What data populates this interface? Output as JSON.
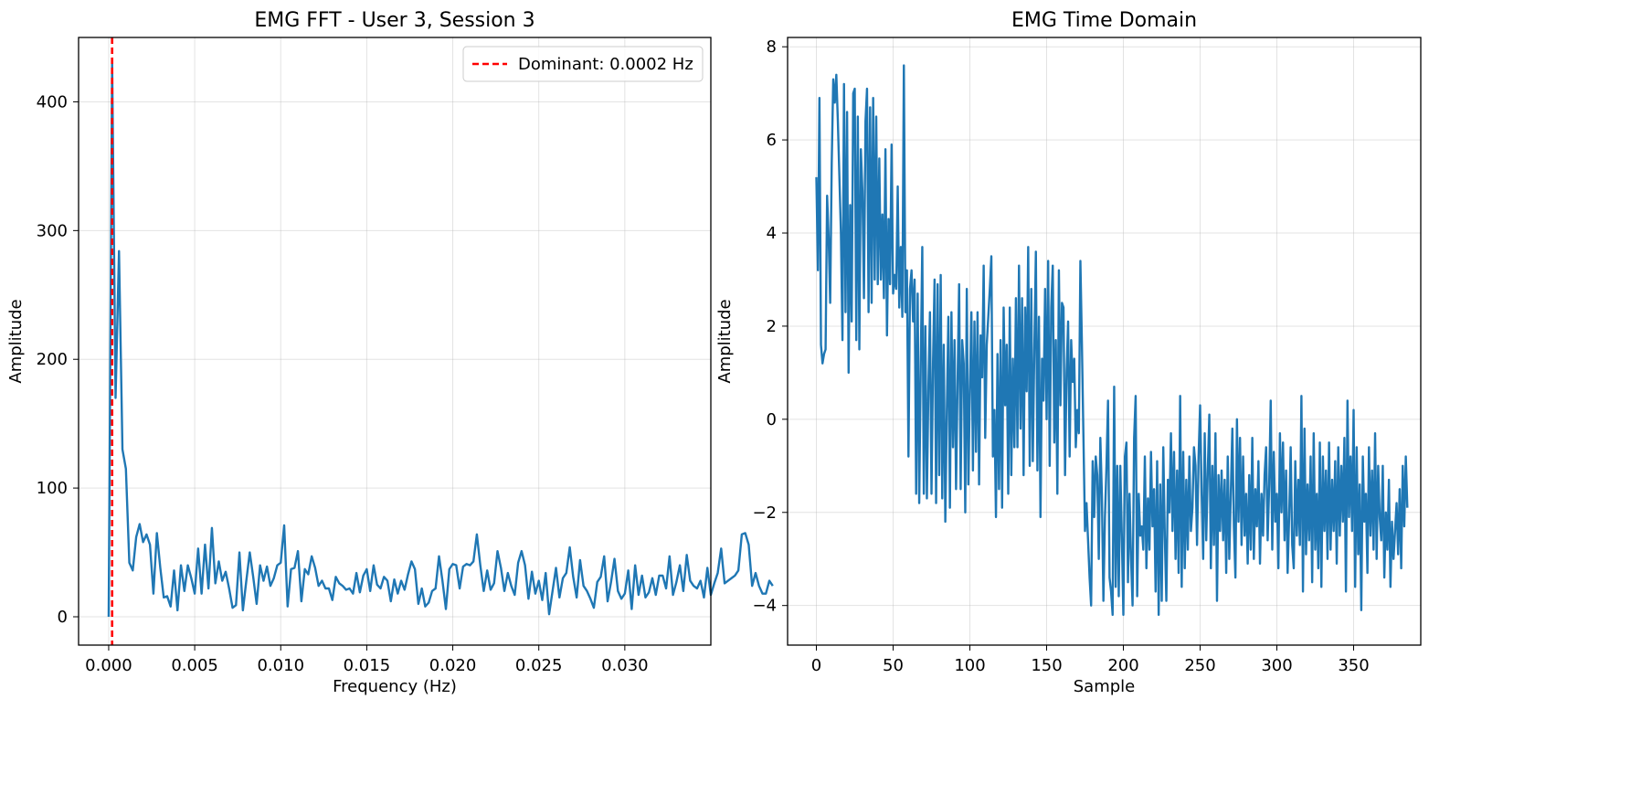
{
  "chart_data": [
    {
      "type": "line",
      "title": "EMG FFT - User 3, Session 3",
      "xlabel": "Frequency (Hz)",
      "ylabel": "Amplitude",
      "xlim": [
        -0.00175,
        0.035
      ],
      "ylim": [
        -22,
        450
      ],
      "xticks": [
        0.0,
        0.005,
        0.01,
        0.015,
        0.02,
        0.025,
        0.03
      ],
      "xtick_labels": [
        "0.000",
        "0.005",
        "0.010",
        "0.015",
        "0.020",
        "0.025",
        "0.030"
      ],
      "yticks": [
        0,
        100,
        200,
        300,
        400
      ],
      "ytick_labels": [
        "0",
        "100",
        "200",
        "300",
        "400"
      ],
      "grid": true,
      "legend": {
        "placement": "top-right",
        "entries": [
          {
            "label": "Dominant: 0.0002 Hz",
            "color": "#ff0000",
            "style": "dashed"
          }
        ]
      },
      "marker_line": {
        "x": 0.0002,
        "color": "#ff0000"
      },
      "series": [
        {
          "color": "#1f77b4",
          "x_start": 0.0,
          "x_step": 0.0002,
          "values": [
            0,
            430,
            170,
            284,
            130,
            115,
            42,
            36,
            62,
            72,
            58,
            64,
            56,
            18,
            65,
            38,
            15,
            16,
            8,
            36,
            5,
            40,
            20,
            40,
            30,
            18,
            53,
            18,
            56,
            22,
            69,
            26,
            43,
            28,
            35,
            22,
            7,
            9,
            50,
            5,
            28,
            50,
            31,
            10,
            40,
            28,
            39,
            24,
            30,
            40,
            42,
            71,
            8,
            37,
            38,
            51,
            12,
            37,
            33,
            47,
            38,
            24,
            28,
            22,
            22,
            13,
            31,
            26,
            24,
            21,
            22,
            18,
            34,
            19,
            32,
            37,
            20,
            40,
            25,
            22,
            31,
            28,
            12,
            29,
            18,
            28,
            21,
            33,
            43,
            37,
            10,
            22,
            8,
            11,
            20,
            22,
            47,
            28,
            6,
            37,
            41,
            40,
            22,
            39,
            41,
            40,
            43,
            64,
            40,
            20,
            36,
            21,
            26,
            51,
            38,
            20,
            34,
            24,
            17,
            42,
            51,
            40,
            14,
            35,
            18,
            28,
            13,
            34,
            2,
            20,
            38,
            15,
            30,
            34,
            54,
            31,
            15,
            44,
            24,
            20,
            14,
            7,
            27,
            31,
            47,
            12,
            27,
            45,
            20,
            14,
            18,
            36,
            6,
            40,
            17,
            32,
            15,
            19,
            30,
            17,
            32,
            32,
            22,
            47,
            17,
            27,
            40,
            20,
            48,
            28,
            24,
            22,
            28,
            15,
            38,
            17,
            26,
            34,
            53,
            26,
            28,
            30,
            32,
            36,
            64,
            65,
            56,
            24,
            34,
            24,
            18,
            18,
            28,
            24
          ]
        }
      ]
    },
    {
      "type": "line",
      "title": "EMG Time Domain",
      "xlabel": "Sample",
      "ylabel": "Amplitude",
      "xlim": [
        -18.75,
        393.75
      ],
      "ylim": [
        -4.85,
        8.2
      ],
      "xticks": [
        0,
        50,
        100,
        150,
        200,
        250,
        300,
        350
      ],
      "xtick_labels": [
        "0",
        "50",
        "100",
        "150",
        "200",
        "250",
        "300",
        "350"
      ],
      "yticks": [
        -4,
        -2,
        0,
        2,
        4,
        6,
        8
      ],
      "ytick_labels": [
        "−4",
        "−2",
        "0",
        "2",
        "4",
        "6",
        "8"
      ],
      "grid": true,
      "series": [
        {
          "color": "#1f77b4",
          "x_start": 0,
          "x_step": 1,
          "values": [
            5.2,
            3.2,
            6.9,
            1.6,
            1.2,
            1.4,
            1.5,
            4.8,
            3.9,
            2.5,
            5.5,
            7.3,
            6.8,
            7.4,
            6.4,
            5.2,
            4.0,
            1.7,
            7.2,
            2.3,
            6.6,
            1.0,
            4.6,
            2.1,
            7.0,
            7.1,
            1.7,
            6.5,
            1.5,
            5.8,
            4.9,
            2.6,
            6.4,
            7.1,
            2.3,
            6.7,
            2.5,
            6.9,
            3.0,
            6.5,
            2.9,
            5.6,
            3.0,
            4.4,
            2.6,
            5.8,
            1.8,
            4.3,
            2.9,
            5.9,
            2.7,
            3.1,
            2.8,
            5.0,
            2.4,
            3.7,
            2.2,
            7.6,
            2.3,
            3.2,
            -0.8,
            2.8,
            3.2,
            2.1,
            3.0,
            -1.6,
            2.7,
            -1.8,
            1.2,
            3.7,
            -1.6,
            2.0,
            -1.7,
            0.7,
            2.3,
            -1.6,
            1.2,
            3.0,
            -1.8,
            2.9,
            -1.2,
            3.1,
            -1.7,
            1.6,
            -2.2,
            0.2,
            2.2,
            -1.9,
            2.3,
            -0.6,
            1.7,
            -1.5,
            0.8,
            2.9,
            -1.5,
            1.7,
            1.2,
            -2.0,
            2.8,
            -1.4,
            0.6,
            2.3,
            -1.1,
            2.1,
            -0.7,
            2.3,
            -1.4,
            1.8,
            0.9,
            3.3,
            -0.4,
            1.6,
            2.2,
            2.8,
            3.5,
            -0.8,
            0.2,
            -2.1,
            1.4,
            -1.5,
            1.7,
            -1.9,
            2.4,
            0.3,
            1.6,
            -1.6,
            2.4,
            -1.2,
            1.3,
            -0.6,
            2.6,
            -0.6,
            3.3,
            -0.2,
            2.6,
            -1.2,
            2.4,
            0.6,
            3.7,
            -1.0,
            2.8,
            -0.9,
            1.5,
            3.6,
            -1.1,
            2.2,
            -2.1,
            1.3,
            0.4,
            2.8,
            0.0,
            3.4,
            -1.0,
            2.4,
            3.3,
            -0.5,
            1.7,
            -1.6,
            3.2,
            0.3,
            2.5,
            2.4,
            -1.2,
            1.0,
            2.1,
            -0.8,
            1.7,
            0.8,
            1.3,
            -0.6,
            0.2,
            -0.3,
            3.4,
            1.6,
            -0.4,
            -2.4,
            -1.8,
            -2.6,
            -3.4,
            -4.0,
            -0.9,
            -2.1,
            -0.8,
            -1.2,
            -3.0,
            -0.4,
            -1.6,
            -3.9,
            -2.1,
            -1.0,
            0.4,
            -3.4,
            -3.7,
            -4.2,
            0.7,
            -3.6,
            -1.0,
            -3.8,
            -1.0,
            -2.5,
            -4.2,
            -0.8,
            -0.5,
            -3.5,
            -1.6,
            -3.0,
            -4.0,
            -0.4,
            0.5,
            -3.8,
            -1.6,
            -2.5,
            -2.3,
            -2.8,
            -0.8,
            -3.2,
            -1.7,
            -2.8,
            -0.7,
            -2.3,
            -1.5,
            -3.7,
            -0.9,
            -4.2,
            -1.4,
            -3.9,
            -0.6,
            -2.5,
            -3.9,
            -1.3,
            -2.0,
            -0.3,
            -2.4,
            -0.7,
            -3.0,
            -1.1,
            -3.3,
            0.5,
            -3.6,
            -0.7,
            -3.2,
            -1.3,
            -2.8,
            -0.8,
            -2.4,
            -1.9,
            -0.6,
            -1.0,
            -2.7,
            -0.8,
            0.3,
            -1.6,
            -3.0,
            -0.3,
            -2.6,
            -1.1,
            0.1,
            -3.2,
            -1.0,
            -2.7,
            -0.3,
            -3.9,
            -1.2,
            -2.4,
            -1.1,
            -2.6,
            -1.3,
            -3.3,
            -0.8,
            -3.0,
            -1.6,
            -0.2,
            -2.3,
            -3.4,
            0.0,
            -2.2,
            -0.4,
            -2.7,
            -0.8,
            -2.5,
            -1.6,
            -3.1,
            -1.2,
            -2.8,
            -0.4,
            -3.0,
            -1.5,
            -2.3,
            -0.9,
            -3.1,
            -1.6,
            -2.5,
            -1.2,
            -0.6,
            -2.6,
            -1.4,
            0.4,
            -2.8,
            -0.7,
            -2.2,
            -1.6,
            -3.2,
            -0.3,
            -2.0,
            -0.5,
            -2.6,
            -1.1,
            -3.3,
            -2.1,
            -0.6,
            -2.7,
            -3.2,
            -0.9,
            -2.5,
            -1.3,
            -2.7,
            0.5,
            -3.7,
            -0.2,
            -2.9,
            -1.4,
            -2.6,
            -0.8,
            -3.5,
            -0.3,
            -2.8,
            -1.6,
            -3.2,
            -0.5,
            -3.6,
            -0.8,
            -2.4,
            -1.1,
            -3.0,
            -0.5,
            -2.8,
            -1.3,
            -2.4,
            -0.9,
            -3.1,
            -0.6,
            -2.5,
            -1.0,
            -2.2,
            -0.4,
            -3.7,
            0.4,
            -2.1,
            -0.8,
            -2.4,
            0.2,
            -3.6,
            -0.6,
            -2.9,
            -1.4,
            -4.1,
            -0.8,
            -2.2,
            -1.6,
            -3.3,
            -0.6,
            -2.5,
            -1.1,
            -2.8,
            -0.3,
            -3.0,
            -1.0,
            -2.1,
            -2.6,
            -1.0,
            -3.4,
            -2.0,
            -2.8,
            -1.3,
            -3.6,
            -2.2,
            -3.0,
            -2.4,
            -1.8,
            -2.9,
            -1.5,
            -3.2,
            -1.0,
            -2.3,
            -0.8,
            -1.9
          ]
        }
      ]
    }
  ]
}
